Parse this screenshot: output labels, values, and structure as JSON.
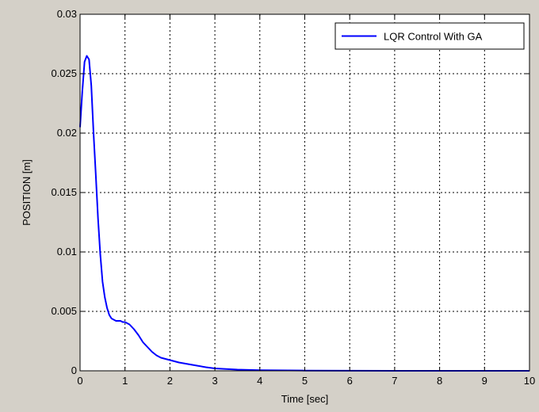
{
  "chart_data": {
    "type": "line",
    "title": "",
    "xlabel": "Time [sec]",
    "ylabel": "POSITION [m]",
    "xlim": [
      0,
      10
    ],
    "ylim": [
      0,
      0.03
    ],
    "xticks": [
      0,
      1,
      2,
      3,
      4,
      5,
      6,
      7,
      8,
      9,
      10
    ],
    "xtick_labels": [
      "0",
      "1",
      "2",
      "3",
      "4",
      "5",
      "6",
      "7",
      "8",
      "9",
      "10"
    ],
    "yticks": [
      0,
      0.005,
      0.01,
      0.015,
      0.02,
      0.025,
      0.03
    ],
    "ytick_labels": [
      "0",
      "0.005",
      "0.01",
      "0.015",
      "0.02",
      "0.025",
      "0.03"
    ],
    "grid": true,
    "legend_position": "top-right",
    "colors": {
      "figure_background": "#d4d0c8",
      "axes_background": "#ffffff",
      "series": "#0000ff"
    },
    "series": [
      {
        "name": "LQR Control With GA",
        "x": [
          0,
          0.05,
          0.1,
          0.15,
          0.2,
          0.25,
          0.3,
          0.35,
          0.4,
          0.45,
          0.5,
          0.55,
          0.6,
          0.65,
          0.7,
          0.75,
          0.8,
          0.85,
          0.9,
          0.95,
          1.0,
          1.1,
          1.2,
          1.3,
          1.4,
          1.5,
          1.6,
          1.7,
          1.8,
          2.0,
          2.2,
          2.5,
          2.8,
          3.0,
          3.5,
          4.0,
          5.0,
          6.0,
          7.0,
          8.0,
          9.0,
          10.0
        ],
        "y": [
          0.0205,
          0.0235,
          0.026,
          0.0265,
          0.0262,
          0.024,
          0.02,
          0.0165,
          0.0128,
          0.0098,
          0.0075,
          0.0062,
          0.0053,
          0.0047,
          0.0044,
          0.0043,
          0.0042,
          0.0042,
          0.0042,
          0.0041,
          0.0041,
          0.0039,
          0.0035,
          0.003,
          0.0024,
          0.002,
          0.0016,
          0.0013,
          0.0011,
          0.0009,
          0.0007,
          0.0005,
          0.0003,
          0.0002,
          0.0001,
          5e-05,
          2e-05,
          1e-05,
          0.0,
          0.0,
          0.0,
          0.0
        ]
      }
    ]
  }
}
